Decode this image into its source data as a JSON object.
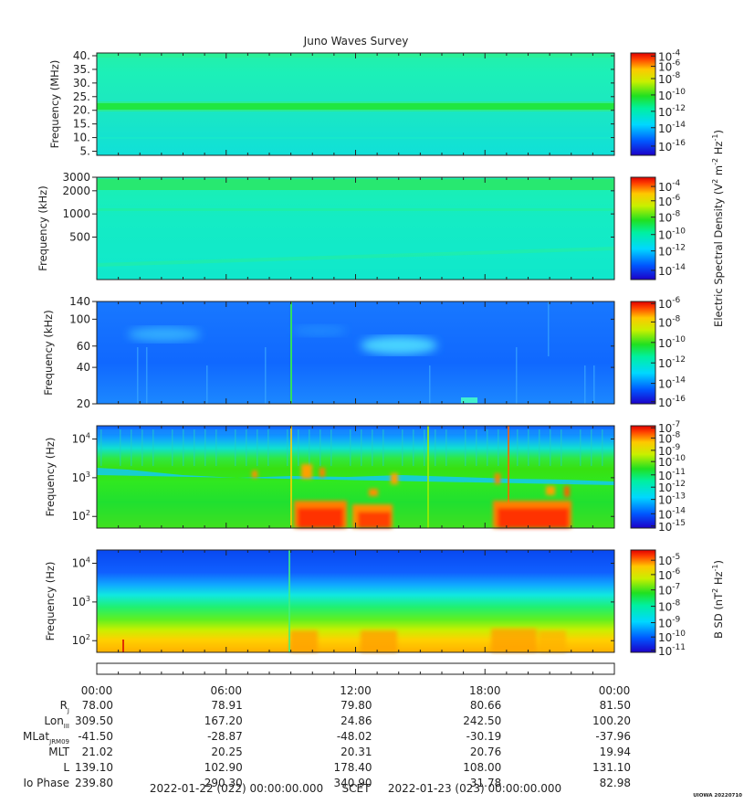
{
  "chart_data": {
    "type": "heatmap",
    "title": "Juno Waves Survey",
    "panels": [
      {
        "ylabel": "Frequency (MHz)",
        "yscale": "linear",
        "ylim": [
          3.5,
          41
        ],
        "yticks": [
          {
            "v": 5,
            "t": "5."
          },
          {
            "v": 10,
            "t": "10."
          },
          {
            "v": 15,
            "t": "15."
          },
          {
            "v": 20,
            "t": "20."
          },
          {
            "v": 25,
            "t": "25."
          },
          {
            "v": 30,
            "t": "30."
          },
          {
            "v": 35,
            "t": "35."
          },
          {
            "v": 40,
            "t": "40."
          }
        ],
        "colorbar": {
          "ticks": [
            {
              "e": -4,
              "f": 0.03
            },
            {
              "e": -6,
              "f": 0.13
            },
            {
              "e": -8,
              "f": 0.25
            },
            {
              "e": -10,
              "f": 0.41
            },
            {
              "e": -12,
              "f": 0.57
            },
            {
              "e": -14,
              "f": 0.73
            },
            {
              "e": -16,
              "f": 0.91
            }
          ]
        }
      },
      {
        "ylabel": "Frequency (kHz)",
        "yscale": "log",
        "ylim": [
          140,
          3000
        ],
        "yticks": [
          {
            "v": 500,
            "t": "500"
          },
          {
            "v": 1000,
            "t": "1000"
          },
          {
            "v": 2000,
            "t": "2000"
          },
          {
            "v": 3000,
            "t": "3000"
          }
        ],
        "colorbar": {
          "ticks": [
            {
              "e": -4,
              "f": 0.09
            },
            {
              "e": -6,
              "f": 0.23
            },
            {
              "e": -8,
              "f": 0.39
            },
            {
              "e": -10,
              "f": 0.56
            },
            {
              "e": -12,
              "f": 0.72
            },
            {
              "e": -14,
              "f": 0.91
            }
          ]
        }
      },
      {
        "ylabel": "Frequency (kHz)",
        "yscale": "log",
        "ylim": [
          20,
          140
        ],
        "yticks": [
          {
            "v": 20,
            "t": "20"
          },
          {
            "v": 40,
            "t": "40"
          },
          {
            "v": 60,
            "t": "60"
          },
          {
            "v": 100,
            "t": "100"
          },
          {
            "v": 140,
            "t": "140"
          }
        ],
        "colorbar": {
          "ticks": [
            {
              "e": -6,
              "f": 0.02
            },
            {
              "e": -8,
              "f": 0.2
            },
            {
              "e": -10,
              "f": 0.4
            },
            {
              "e": -12,
              "f": 0.6
            },
            {
              "e": -14,
              "f": 0.8
            },
            {
              "e": -16,
              "f": 0.98
            }
          ]
        }
      },
      {
        "ylabel": "Frequency (Hz)",
        "yscale": "log",
        "ylim": [
          50,
          22000
        ],
        "yticks": [
          {
            "v": 100,
            "t": "10",
            "e": "2"
          },
          {
            "v": 1000,
            "t": "10",
            "e": "3"
          },
          {
            "v": 10000,
            "t": "10",
            "e": "4"
          }
        ],
        "colorbar": {
          "ticks": [
            {
              "e": -7,
              "f": 0.02
            },
            {
              "e": -8,
              "f": 0.12
            },
            {
              "e": -9,
              "f": 0.24
            },
            {
              "e": -10,
              "f": 0.35
            },
            {
              "e": -11,
              "f": 0.48
            },
            {
              "e": -12,
              "f": 0.6
            },
            {
              "e": -13,
              "f": 0.72
            },
            {
              "e": -14,
              "f": 0.86
            },
            {
              "e": -15,
              "f": 0.98
            }
          ]
        }
      },
      {
        "ylabel": "Frequency (Hz)",
        "yscale": "log",
        "ylim": [
          50,
          22000
        ],
        "yticks": [
          {
            "v": 100,
            "t": "10",
            "e": "2"
          },
          {
            "v": 1000,
            "t": "10",
            "e": "3"
          },
          {
            "v": 10000,
            "t": "10",
            "e": "4"
          }
        ],
        "colorbar": {
          "ticks": [
            {
              "e": -5,
              "f": 0.1
            },
            {
              "e": -6,
              "f": 0.24
            },
            {
              "e": -7,
              "f": 0.39
            },
            {
              "e": -8,
              "f": 0.55
            },
            {
              "e": -9,
              "f": 0.71
            },
            {
              "e": -10,
              "f": 0.85
            },
            {
              "e": -11,
              "f": 0.98
            }
          ]
        }
      }
    ],
    "colorbar_labels": [
      {
        "text": "Electric Spectral Density (V",
        "sup1": "2",
        "mid": " m",
        "sup2": "-2",
        "mid2": " Hz",
        "sup3": "-1",
        "end": ")"
      },
      {
        "text": "B SD (nT",
        "sup1": "2",
        "mid": " Hz",
        "sup2": "-1",
        "end": ")"
      }
    ],
    "x_ticks": [
      "00:00",
      "06:00",
      "12:00",
      "18:00",
      "00:00"
    ],
    "ephemeris": [
      {
        "label": "R",
        "sub": "J",
        "values": [
          "78.00",
          "78.91",
          "79.80",
          "80.66",
          "81.50"
        ]
      },
      {
        "label": "Lon",
        "sub": "III",
        "values": [
          "309.50",
          "167.20",
          "24.86",
          "242.50",
          "100.20"
        ]
      },
      {
        "label": "MLat",
        "sub": "JRM09",
        "values": [
          "-41.50",
          "-28.87",
          "-48.02",
          "-30.19",
          "-37.96"
        ]
      },
      {
        "label": "MLT",
        "sub": "",
        "values": [
          "21.02",
          "20.25",
          "20.31",
          "20.76",
          "19.94"
        ]
      },
      {
        "label": "L",
        "sub": "",
        "values": [
          "139.10",
          "102.90",
          "178.40",
          "108.00",
          "131.10"
        ]
      },
      {
        "label": "Io Phase",
        "sub": "",
        "values": [
          "239.80",
          "290.30",
          "340.90",
          "31.78",
          "82.98"
        ]
      }
    ],
    "time_range": {
      "start": "2022-01-22 (022) 00:00:00.000",
      "label": "SCET",
      "end": "2022-01-23 (023) 00:00:00.000"
    },
    "stamp": "UIOWA 20220710"
  }
}
